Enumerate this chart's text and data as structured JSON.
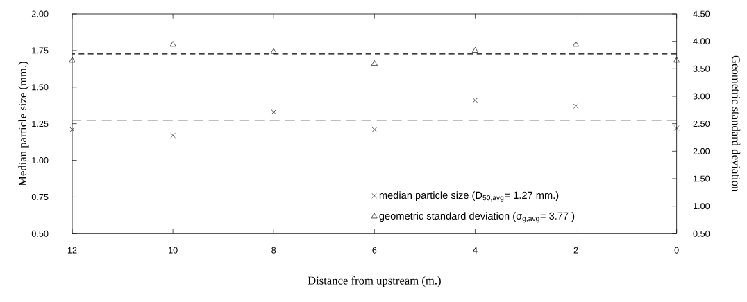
{
  "chart_data": {
    "type": "scatter",
    "xlabel": "Distance from upstream (m.)",
    "ylabel": "Median particle size (mm.)",
    "y2label": "Geometric standard deviation",
    "x": [
      12,
      10,
      8,
      6,
      4,
      2,
      0
    ],
    "series": [
      {
        "name": "median particle size (D$_{50,avg}$= 1.27 mm.)",
        "color": "#000000",
        "marker": "cross",
        "values": [
          1.21,
          1.17,
          1.33,
          1.21,
          1.41,
          1.37,
          1.22
        ]
      },
      {
        "name": "geometric standard deviation (σ$_{g,avg}$= 3.77 )",
        "color": "#000000",
        "marker": "triangle",
        "axis": "y2",
        "values": [
          3.65,
          3.94,
          3.81,
          3.59,
          3.83,
          3.94,
          3.65
        ]
      }
    ],
    "xlim": [
      12,
      0
    ],
    "xticks": [
      12,
      10,
      8,
      6,
      4,
      2,
      0
    ],
    "ylim": [
      0.5,
      2.0
    ],
    "yticks": [
      {
        "value": 0.5,
        "label": "0.50"
      },
      {
        "value": 0.75,
        "label": "0.75"
      },
      {
        "value": 1.0,
        "label": "1.00"
      },
      {
        "value": 1.25,
        "label": "1.25"
      },
      {
        "value": 1.5,
        "label": "1.50"
      },
      {
        "value": 1.75,
        "label": "1.75"
      },
      {
        "value": 2.0,
        "label": "2.00"
      }
    ],
    "y2lim": [
      0.5,
      4.5
    ],
    "y2ticks": [
      {
        "value": 0.5,
        "label": "0.50"
      },
      {
        "value": 1.0,
        "label": "1.00"
      },
      {
        "value": 1.5,
        "label": "1.50"
      },
      {
        "value": 2.0,
        "label": "2.00"
      },
      {
        "value": 2.5,
        "label": "2.50"
      },
      {
        "value": 3.0,
        "label": "3.00"
      },
      {
        "value": 3.5,
        "label": "3.50"
      },
      {
        "value": 4.0,
        "label": "4.00"
      },
      {
        "value": 4.5,
        "label": "4.50"
      }
    ],
    "ref_lines": [
      {
        "axis": "y",
        "value": 1.27,
        "line_style": "dashed"
      },
      {
        "axis": "y2",
        "value": 3.77,
        "line_style": "dashed"
      }
    ],
    "legend": "bottom right"
  }
}
